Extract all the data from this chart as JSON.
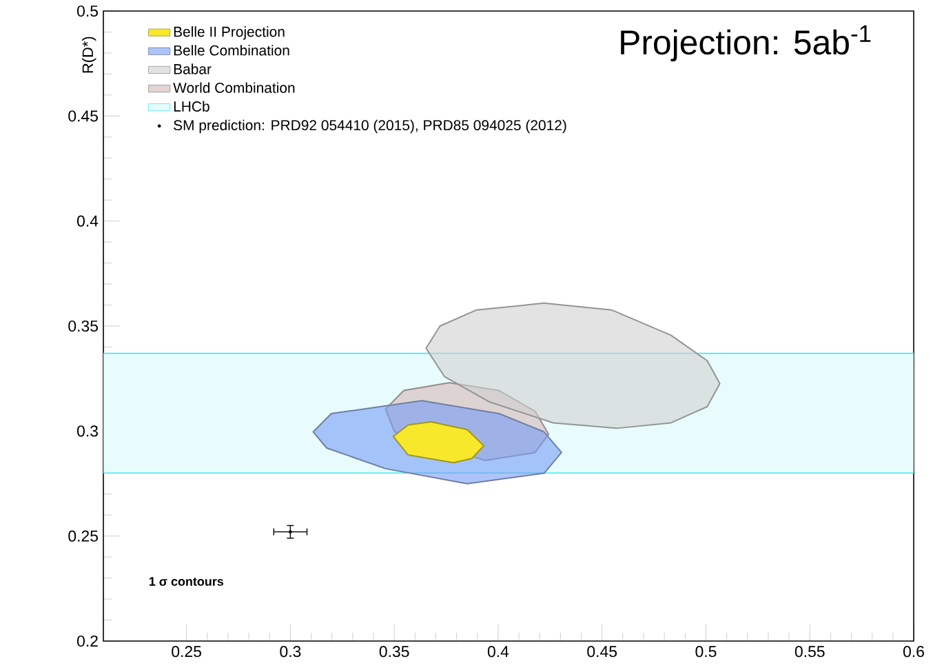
{
  "chart_data": {
    "type": "area",
    "title": "Projection: 5ab$^{-1}$",
    "ylabel": "R(D*)",
    "xlim": [
      0.21,
      0.6
    ],
    "xticks": [
      0.25,
      0.3,
      0.35,
      0.4,
      0.45,
      0.5,
      0.55,
      0.6
    ],
    "ylim": [
      0.2,
      0.5
    ],
    "yticks": [
      0.2,
      0.25,
      0.3,
      0.35,
      0.4,
      0.45,
      0.5
    ],
    "grid": false,
    "legend": "top left",
    "marker": "none",
    "line_style": "solid",
    "annotations": [
      "1 σ contours"
    ],
    "bands": [
      {
        "axis": "y",
        "from": 0.28,
        "to": 0.337,
        "label": "LHCb",
        "color": "#e8fcfd"
      }
    ],
    "series": [
      {
        "name": "Belle II Projection",
        "color": "#f8e82c",
        "x": [
          0.3495,
          0.3567,
          0.3677,
          0.3851,
          0.3931,
          0.3873,
          0.3785,
          0.3567,
          0.3495
        ],
        "values": [
          0.2974,
          0.3029,
          0.3044,
          0.3007,
          0.293,
          0.2869,
          0.2849,
          0.2886,
          0.2974
        ]
      },
      {
        "name": "Belle Combination",
        "color": "#adc4fa",
        "x": [
          0.311,
          0.3197,
          0.3633,
          0.4004,
          0.4221,
          0.4305,
          0.4221,
          0.3851,
          0.3458,
          0.3175,
          0.311
        ],
        "values": [
          0.2996,
          0.3083,
          0.3145,
          0.3083,
          0.2996,
          0.2898,
          0.2799,
          0.2749,
          0.2821,
          0.2919,
          0.2996
        ]
      },
      {
        "name": "Babar",
        "color": "#e3e3e3",
        "x": [
          0.3653,
          0.372,
          0.3894,
          0.4221,
          0.4548,
          0.4832,
          0.5006,
          0.5067,
          0.5006,
          0.4832,
          0.457,
          0.4265,
          0.396,
          0.3742,
          0.3653
        ],
        "values": [
          0.3394,
          0.35,
          0.3576,
          0.3609,
          0.3576,
          0.3456,
          0.3335,
          0.3226,
          0.3116,
          0.3039,
          0.3013,
          0.3039,
          0.3138,
          0.3259,
          0.3394
        ]
      },
      {
        "name": "World Combination",
        "color": "#e6d4d4",
        "x": [
          0.3458,
          0.3546,
          0.3764,
          0.4004,
          0.4178,
          0.4243,
          0.4178,
          0.3938,
          0.3677,
          0.3502,
          0.3458
        ],
        "values": [
          0.3105,
          0.3193,
          0.323,
          0.3193,
          0.3094,
          0.2985,
          0.2898,
          0.286,
          null,
          0.2996,
          0.3105
        ]
      },
      {
        "name": "SM prediction: PRD92 054410 (2015), PRD85 094025 (2012)",
        "type": "scatter",
        "color": "#000000",
        "marker": "circle",
        "x": [
          0.3
        ],
        "values": [
          0.252
        ],
        "errors": [
          0.003
        ],
        "xerrors": [
          0.008
        ]
      }
    ]
  }
}
